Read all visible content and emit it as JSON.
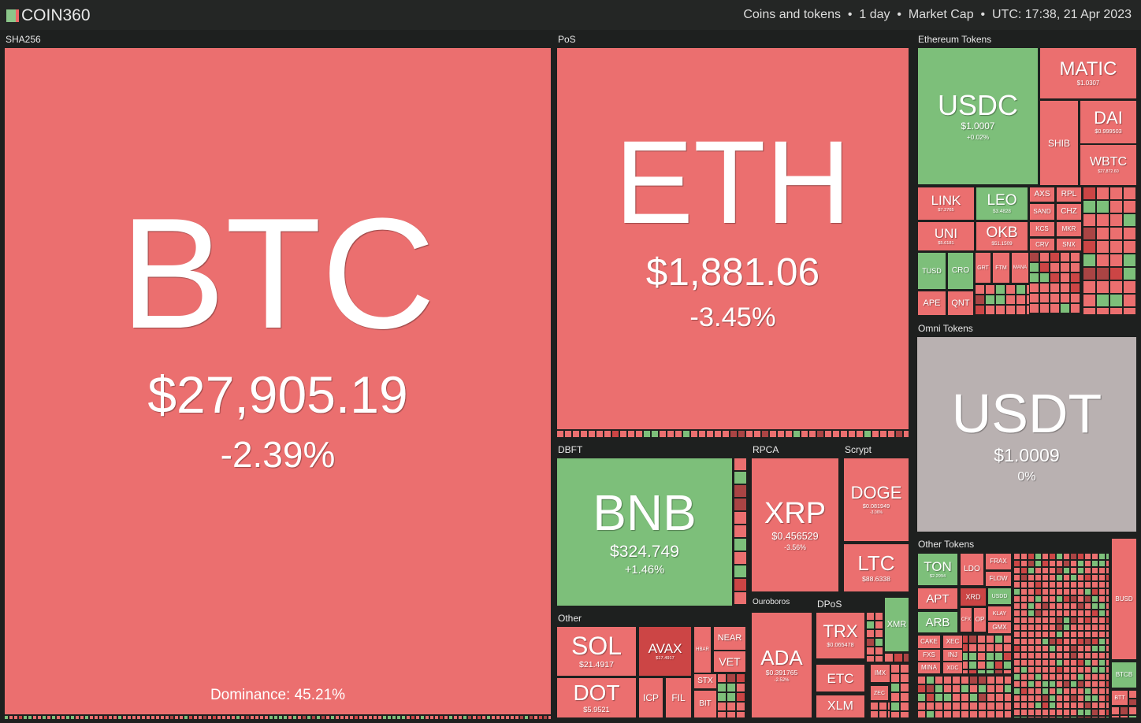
{
  "header": {
    "logo": "COIN360",
    "filters": [
      "Coins and tokens",
      "1 day",
      "Market Cap",
      "UTC: 17:38, 21 Apr 2023"
    ]
  },
  "groups": [
    "SHA256",
    "PoS",
    "Ethereum Tokens",
    "Omni Tokens",
    "Other Tokens",
    "DBFT",
    "RPCA",
    "Scrypt",
    "Other",
    "Ouroboros",
    "DPoS"
  ],
  "dominance": "Dominance: 45.21%",
  "tiles": [
    {
      "symbol": "BTC",
      "price": "$27,905.19",
      "change": "-2.39%"
    },
    {
      "symbol": "ETH",
      "price": "$1,881.06",
      "change": "-3.45%"
    },
    {
      "symbol": "USDC",
      "price": "$1.0007",
      "change": "+0.02%"
    },
    {
      "symbol": "MATIC",
      "price": "$1.0307"
    },
    {
      "symbol": "DAI",
      "price": "$0.999503"
    },
    {
      "symbol": "SHIB"
    },
    {
      "symbol": "WBTC",
      "price": "$27,872.60"
    },
    {
      "symbol": "LINK",
      "price": "$7.2765"
    },
    {
      "symbol": "LEO",
      "price": "$3.4828"
    },
    {
      "symbol": "UNI",
      "price": "$5.6181"
    },
    {
      "symbol": "OKB",
      "price": "$51.1509"
    },
    {
      "symbol": "TUSD"
    },
    {
      "symbol": "CRO"
    },
    {
      "symbol": "APE"
    },
    {
      "symbol": "QNT"
    },
    {
      "symbol": "AXS"
    },
    {
      "symbol": "RPL"
    },
    {
      "symbol": "SAND"
    },
    {
      "symbol": "CHZ"
    },
    {
      "symbol": "KCS"
    },
    {
      "symbol": "MKR"
    },
    {
      "symbol": "CRV"
    },
    {
      "symbol": "SNX"
    },
    {
      "symbol": "GRT"
    },
    {
      "symbol": "FTM"
    },
    {
      "symbol": "MANA"
    },
    {
      "symbol": "USDT",
      "price": "$1.0009",
      "change": "0%"
    },
    {
      "symbol": "TON",
      "price": "$2.2994"
    },
    {
      "symbol": "LDO"
    },
    {
      "symbol": "FRAX"
    },
    {
      "symbol": "FLOW"
    },
    {
      "symbol": "APT"
    },
    {
      "symbol": "XRD"
    },
    {
      "symbol": "USDD"
    },
    {
      "symbol": "ARB"
    },
    {
      "symbol": "CFX"
    },
    {
      "symbol": "OP"
    },
    {
      "symbol": "KLAY"
    },
    {
      "symbol": "GMX"
    },
    {
      "symbol": "CAKE"
    },
    {
      "symbol": "XEC"
    },
    {
      "symbol": "FXS"
    },
    {
      "symbol": "INJ"
    },
    {
      "symbol": "MINA"
    },
    {
      "symbol": "XDC"
    },
    {
      "symbol": "BUSD"
    },
    {
      "symbol": "BTCB"
    },
    {
      "symbol": "BTT"
    },
    {
      "symbol": "BNB",
      "price": "$324.749",
      "change": "+1.46%"
    },
    {
      "symbol": "XRP",
      "price": "$0.456529",
      "change": "-3.56%"
    },
    {
      "symbol": "DOGE",
      "price": "$0.081949",
      "change": "-3.06%"
    },
    {
      "symbol": "LTC",
      "price": "$88.6338"
    },
    {
      "symbol": "SOL",
      "price": "$21.4917"
    },
    {
      "symbol": "AVAX",
      "price": "$17.4917"
    },
    {
      "symbol": "DOT",
      "price": "$5.9521"
    },
    {
      "symbol": "NEAR"
    },
    {
      "symbol": "VET"
    },
    {
      "symbol": "HBAR"
    },
    {
      "symbol": "STX"
    },
    {
      "symbol": "BIT"
    },
    {
      "symbol": "ICP"
    },
    {
      "symbol": "FIL"
    },
    {
      "symbol": "ADA",
      "price": "$0.391765",
      "change": "-2.52%"
    },
    {
      "symbol": "TRX",
      "price": "$0.065478"
    },
    {
      "symbol": "ETC"
    },
    {
      "symbol": "XLM"
    },
    {
      "symbol": "XMR"
    },
    {
      "symbol": "IMX"
    },
    {
      "symbol": "ZEC"
    }
  ]
}
